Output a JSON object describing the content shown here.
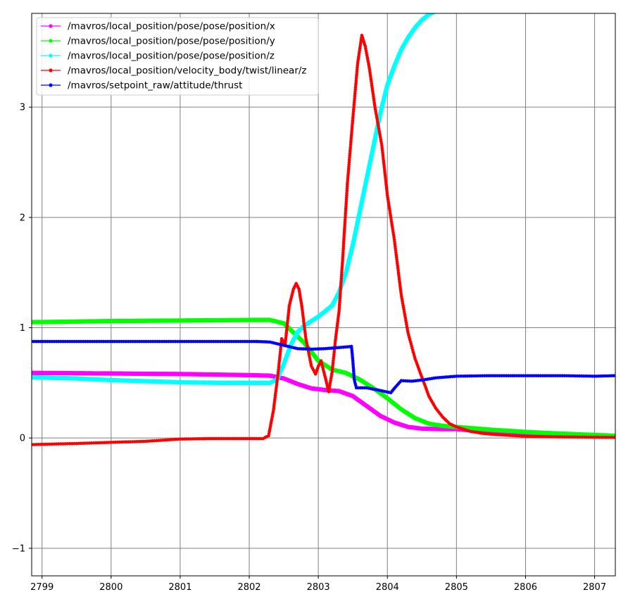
{
  "chart_data": {
    "type": "line",
    "title": "",
    "xlabel": "",
    "ylabel": "",
    "xlim": [
      2798.85,
      2807.3
    ],
    "ylim": [
      -1.25,
      3.85
    ],
    "x_ticks": [
      2799,
      2800,
      2801,
      2802,
      2803,
      2804,
      2805,
      2806,
      2807
    ],
    "y_ticks": [
      -1,
      0,
      1,
      2,
      3
    ],
    "y_tick_labels": [
      "−1",
      "0",
      "1",
      "2",
      "3"
    ],
    "grid": true,
    "legend_position": "top-left",
    "series": [
      {
        "name": "/mavros/local_position/pose/pose/position/x",
        "color": "#ff00ff",
        "thick": true,
        "points": [
          [
            2798.85,
            0.59
          ],
          [
            2800.0,
            0.585
          ],
          [
            2801.0,
            0.58
          ],
          [
            2802.0,
            0.57
          ],
          [
            2802.3,
            0.565
          ],
          [
            2802.5,
            0.54
          ],
          [
            2802.7,
            0.49
          ],
          [
            2802.9,
            0.45
          ],
          [
            2803.1,
            0.435
          ],
          [
            2803.3,
            0.425
          ],
          [
            2803.5,
            0.38
          ],
          [
            2803.7,
            0.29
          ],
          [
            2803.9,
            0.2
          ],
          [
            2804.1,
            0.14
          ],
          [
            2804.3,
            0.1
          ],
          [
            2804.5,
            0.085
          ],
          [
            2804.8,
            0.08
          ],
          [
            2805.0,
            0.08
          ],
          [
            2805.5,
            0.055
          ],
          [
            2806.0,
            0.035
          ],
          [
            2806.5,
            0.025
          ],
          [
            2807.3,
            0.015
          ]
        ]
      },
      {
        "name": "/mavros/local_position/pose/pose/position/y",
        "color": "#00ff00",
        "thick": true,
        "points": [
          [
            2798.85,
            1.05
          ],
          [
            2800.0,
            1.06
          ],
          [
            2801.0,
            1.065
          ],
          [
            2802.0,
            1.07
          ],
          [
            2802.3,
            1.07
          ],
          [
            2802.5,
            1.04
          ],
          [
            2802.6,
            0.98
          ],
          [
            2802.8,
            0.86
          ],
          [
            2803.0,
            0.7
          ],
          [
            2803.2,
            0.62
          ],
          [
            2803.4,
            0.59
          ],
          [
            2803.6,
            0.53
          ],
          [
            2803.8,
            0.45
          ],
          [
            2804.0,
            0.36
          ],
          [
            2804.2,
            0.26
          ],
          [
            2804.4,
            0.18
          ],
          [
            2804.6,
            0.13
          ],
          [
            2804.8,
            0.11
          ],
          [
            2805.0,
            0.1
          ],
          [
            2805.5,
            0.075
          ],
          [
            2806.0,
            0.055
          ],
          [
            2806.5,
            0.04
          ],
          [
            2807.3,
            0.02
          ]
        ]
      },
      {
        "name": "/mavros/local_position/pose/pose/position/z",
        "color": "#00ffff",
        "thick": true,
        "points": [
          [
            2798.85,
            0.55
          ],
          [
            2799.5,
            0.54
          ],
          [
            2800.0,
            0.525
          ],
          [
            2800.5,
            0.515
          ],
          [
            2801.0,
            0.505
          ],
          [
            2801.6,
            0.5
          ],
          [
            2802.3,
            0.5
          ],
          [
            2802.4,
            0.53
          ],
          [
            2802.5,
            0.67
          ],
          [
            2802.6,
            0.84
          ],
          [
            2802.7,
            0.96
          ],
          [
            2802.8,
            1.02
          ],
          [
            2803.0,
            1.1
          ],
          [
            2803.2,
            1.2
          ],
          [
            2803.3,
            1.32
          ],
          [
            2803.4,
            1.5
          ],
          [
            2803.5,
            1.75
          ],
          [
            2803.6,
            2.05
          ],
          [
            2803.7,
            2.35
          ],
          [
            2803.8,
            2.65
          ],
          [
            2803.9,
            2.95
          ],
          [
            2804.0,
            3.2
          ],
          [
            2804.1,
            3.37
          ],
          [
            2804.2,
            3.52
          ],
          [
            2804.3,
            3.63
          ],
          [
            2804.4,
            3.72
          ],
          [
            2804.5,
            3.79
          ],
          [
            2804.6,
            3.84
          ],
          [
            2804.7,
            3.87
          ]
        ]
      },
      {
        "name": "/mavros/local_position/velocity_body/twist/linear/z",
        "color": "#ff0000",
        "thick": false,
        "points": [
          [
            2798.85,
            -0.06
          ],
          [
            2799.5,
            -0.05
          ],
          [
            2800.0,
            -0.04
          ],
          [
            2800.5,
            -0.03
          ],
          [
            2801.0,
            -0.01
          ],
          [
            2801.5,
            -0.005
          ],
          [
            2802.2,
            -0.005
          ],
          [
            2802.28,
            0.02
          ],
          [
            2802.35,
            0.25
          ],
          [
            2802.42,
            0.6
          ],
          [
            2802.47,
            0.9
          ],
          [
            2802.52,
            0.85
          ],
          [
            2802.58,
            1.2
          ],
          [
            2802.64,
            1.35
          ],
          [
            2802.68,
            1.4
          ],
          [
            2802.72,
            1.35
          ],
          [
            2802.76,
            1.2
          ],
          [
            2802.82,
            0.9
          ],
          [
            2802.9,
            0.65
          ],
          [
            2802.96,
            0.58
          ],
          [
            2803.0,
            0.65
          ],
          [
            2803.04,
            0.7
          ],
          [
            2803.1,
            0.55
          ],
          [
            2803.15,
            0.42
          ],
          [
            2803.2,
            0.6
          ],
          [
            2803.25,
            0.9
          ],
          [
            2803.3,
            1.15
          ],
          [
            2803.35,
            1.6
          ],
          [
            2803.42,
            2.3
          ],
          [
            2803.5,
            2.9
          ],
          [
            2803.57,
            3.4
          ],
          [
            2803.63,
            3.65
          ],
          [
            2803.68,
            3.55
          ],
          [
            2803.74,
            3.35
          ],
          [
            2803.82,
            3.0
          ],
          [
            2803.92,
            2.65
          ],
          [
            2804.0,
            2.2
          ],
          [
            2804.1,
            1.8
          ],
          [
            2804.2,
            1.3
          ],
          [
            2804.3,
            0.95
          ],
          [
            2804.4,
            0.72
          ],
          [
            2804.5,
            0.55
          ],
          [
            2804.6,
            0.38
          ],
          [
            2804.7,
            0.27
          ],
          [
            2804.8,
            0.19
          ],
          [
            2804.9,
            0.13
          ],
          [
            2805.0,
            0.1
          ],
          [
            2805.2,
            0.06
          ],
          [
            2805.4,
            0.04
          ],
          [
            2805.6,
            0.03
          ],
          [
            2806.0,
            0.015
          ],
          [
            2806.5,
            0.01
          ],
          [
            2807.3,
            0.005
          ]
        ]
      },
      {
        "name": "/mavros/setpoint_raw/attitude/thrust",
        "color": "#0000ff",
        "thick": false,
        "points": [
          [
            2798.85,
            0.875
          ],
          [
            2802.1,
            0.875
          ],
          [
            2802.3,
            0.87
          ],
          [
            2802.5,
            0.84
          ],
          [
            2802.7,
            0.81
          ],
          [
            2802.9,
            0.805
          ],
          [
            2803.1,
            0.81
          ],
          [
            2803.3,
            0.82
          ],
          [
            2803.48,
            0.83
          ],
          [
            2803.5,
            0.7
          ],
          [
            2803.52,
            0.53
          ],
          [
            2803.55,
            0.455
          ],
          [
            2803.7,
            0.455
          ],
          [
            2803.9,
            0.43
          ],
          [
            2804.05,
            0.41
          ],
          [
            2804.1,
            0.45
          ],
          [
            2804.2,
            0.52
          ],
          [
            2804.35,
            0.515
          ],
          [
            2804.5,
            0.525
          ],
          [
            2804.7,
            0.545
          ],
          [
            2805.0,
            0.56
          ],
          [
            2805.5,
            0.565
          ],
          [
            2806.0,
            0.565
          ],
          [
            2806.5,
            0.565
          ],
          [
            2807.0,
            0.56
          ],
          [
            2807.3,
            0.565
          ]
        ]
      }
    ]
  }
}
